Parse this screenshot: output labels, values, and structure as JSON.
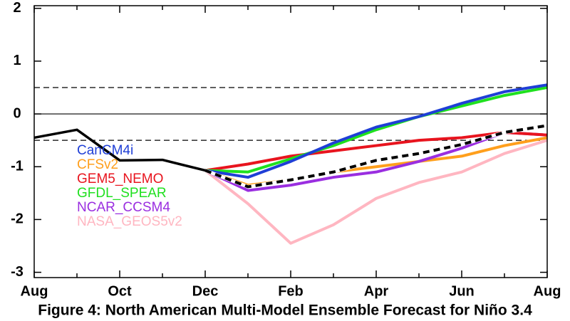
{
  "chart_data": {
    "type": "line",
    "title": "Figure 4: North American Multi-Model Ensemble Forecast for Niño 3.4",
    "categories": [
      "Aug",
      null,
      "Oct",
      null,
      "Dec",
      null,
      "Feb",
      null,
      "Apr",
      null,
      "Jun",
      null,
      "Aug"
    ],
    "ylim": [
      -3.1,
      2.05
    ],
    "yticks": [
      -3,
      -2,
      -1,
      0,
      1,
      2
    ],
    "reference_lines": [
      {
        "value": 0,
        "style": "solid"
      },
      {
        "value": 0.5,
        "style": "dashed"
      },
      {
        "value": -0.5,
        "style": "dashed"
      }
    ],
    "observed": {
      "color": "#000000",
      "values": [
        -0.45,
        -0.3,
        -0.88,
        -0.87,
        -1.07,
        null,
        null,
        null,
        null,
        null,
        null,
        null,
        null
      ]
    },
    "ensemble_mean": {
      "color": "#000000",
      "style": "dashed",
      "values": [
        null,
        null,
        null,
        null,
        -1.07,
        -1.38,
        -1.25,
        -1.1,
        -0.88,
        -0.75,
        -0.58,
        -0.35,
        -0.22
      ]
    },
    "series": [
      {
        "name": "CanCM4i",
        "color": "#1f3fd6",
        "values": [
          null,
          null,
          null,
          null,
          -1.07,
          -1.2,
          -0.9,
          -0.55,
          -0.25,
          -0.05,
          0.2,
          0.42,
          0.55
        ]
      },
      {
        "name": "CFSv2",
        "color": "#ff9f1c",
        "values": [
          null,
          null,
          null,
          null,
          -1.07,
          -1.35,
          -1.25,
          -1.1,
          -1.0,
          -0.9,
          -0.8,
          -0.6,
          -0.45
        ]
      },
      {
        "name": "GEM5_NEMO",
        "color": "#e8141e",
        "values": [
          null,
          null,
          null,
          null,
          -1.07,
          -0.95,
          -0.8,
          -0.7,
          -0.6,
          -0.5,
          -0.45,
          -0.35,
          -0.4
        ]
      },
      {
        "name": "GFDL_SPEAR",
        "color": "#1fe01f",
        "values": [
          null,
          null,
          null,
          null,
          -1.07,
          -1.1,
          -0.85,
          -0.6,
          -0.3,
          -0.05,
          0.15,
          0.35,
          0.5
        ]
      },
      {
        "name": "NCAR_CCSM4",
        "color": "#9a2ee0",
        "values": [
          null,
          null,
          null,
          null,
          -1.07,
          -1.45,
          -1.35,
          -1.2,
          -1.1,
          -0.9,
          -0.65,
          -0.35,
          -0.4
        ]
      },
      {
        "name": "NASA_GEOS5v2",
        "color": "#ffb6c1",
        "values": [
          null,
          null,
          null,
          null,
          -1.07,
          -1.7,
          -2.45,
          -2.1,
          -1.6,
          -1.3,
          -1.1,
          -0.75,
          -0.5
        ]
      }
    ]
  }
}
